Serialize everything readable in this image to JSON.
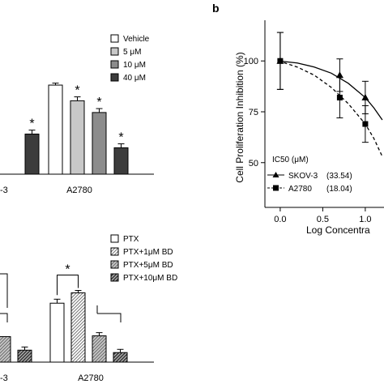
{
  "panel_label": "b",
  "colors": {
    "axis": "#000000",
    "white": "#ffffff",
    "light_gray": "#c8c8c8",
    "mid_gray": "#8c8c8c",
    "dark_gray": "#3c3c3c"
  },
  "chart_data": [
    {
      "type": "bar",
      "visible_fragment": "left-top, cropped",
      "categories": [
        "-3",
        "A2780"
      ],
      "series": [
        {
          "name": "Vehicle",
          "values": [
            null,
            91
          ],
          "errors": [
            null,
            2
          ],
          "fill": "white",
          "hatch": false
        },
        {
          "name": "5 μM",
          "values": [
            75,
            75
          ],
          "errors": [
            null,
            4
          ],
          "fill": "light_gray",
          "hatch": false
        },
        {
          "name": "10 μM",
          "values": [
            null,
            63
          ],
          "errors": [
            null,
            4
          ],
          "fill": "mid_gray",
          "hatch": false
        },
        {
          "name": "40 μM",
          "values": [
            41,
            27
          ],
          "errors": [
            4,
            4
          ],
          "fill": "dark_gray",
          "hatch": false
        }
      ],
      "significance": [
        {
          "label": "*",
          "category": 1,
          "series": 1
        },
        {
          "label": "*",
          "category": 1,
          "series": 2
        },
        {
          "label": "*",
          "category": 1,
          "series": 3
        },
        {
          "label": "*",
          "category": 0,
          "series": 3
        }
      ],
      "ylim": [
        0,
        120
      ]
    },
    {
      "type": "line",
      "title": "",
      "xlabel": "Log Concentra",
      "ylabel": "Cell Proliferation Inhibition (%)",
      "x_ticks": [
        "0.0",
        "0.5",
        "1.0"
      ],
      "y_ticks": [
        "50",
        "75",
        "100"
      ],
      "xlim": [
        -0.18,
        1.22
      ],
      "ylim": [
        28,
        120
      ],
      "legend_title": "IC50 (μM)",
      "series": [
        {
          "name": "SKOV-3",
          "ic50_label": "(33.54)",
          "marker": "triangle",
          "dash": "solid",
          "x": [
            0.0,
            0.7,
            1.0,
            1.3
          ],
          "y": [
            100,
            93,
            82,
            70
          ],
          "errors": [
            14,
            8,
            8,
            9
          ],
          "fit_x": [
            -0.02,
            0.2,
            0.4,
            0.6,
            0.8,
            1.0,
            1.1,
            1.2
          ],
          "fit_y": [
            100,
            99,
            97,
            94,
            89,
            82,
            77,
            71
          ]
        },
        {
          "name": "A2780",
          "ic50_label": "(18.04)",
          "marker": "square",
          "dash": "dashed",
          "x": [
            0.0,
            0.7,
            1.0,
            1.3
          ],
          "y": [
            100,
            82,
            69,
            52
          ],
          "errors": [
            14,
            10,
            9,
            9
          ],
          "fit_x": [
            -0.02,
            0.2,
            0.4,
            0.6,
            0.8,
            1.0,
            1.1,
            1.2
          ],
          "fit_y": [
            100,
            97,
            93,
            87,
            79,
            69,
            62,
            53
          ]
        }
      ]
    },
    {
      "type": "bar",
      "visible_fragment": "left-bottom, cropped",
      "categories": [
        "-3",
        "A2780"
      ],
      "series": [
        {
          "name": "PTX",
          "values": [
            null,
            74
          ],
          "errors": [
            null,
            5
          ],
          "fill": "white",
          "hatch": false
        },
        {
          "name": "PTX+1μM BD",
          "values": [
            null,
            87
          ],
          "errors": [
            null,
            3
          ],
          "fill": "white",
          "hatch": true
        },
        {
          "name": "PTX+5μM BD",
          "values": [
            32,
            33
          ],
          "errors": [
            null,
            4
          ],
          "fill": "light_gray",
          "hatch": true
        },
        {
          "name": "PTX+10μM BD",
          "values": [
            15,
            12
          ],
          "errors": [
            4,
            4
          ],
          "fill": "dark_gray",
          "hatch": true
        }
      ],
      "significance": [
        {
          "label": "*",
          "between_series": [
            0,
            1
          ],
          "category": 1
        }
      ],
      "ylim": [
        0,
        120
      ]
    }
  ]
}
